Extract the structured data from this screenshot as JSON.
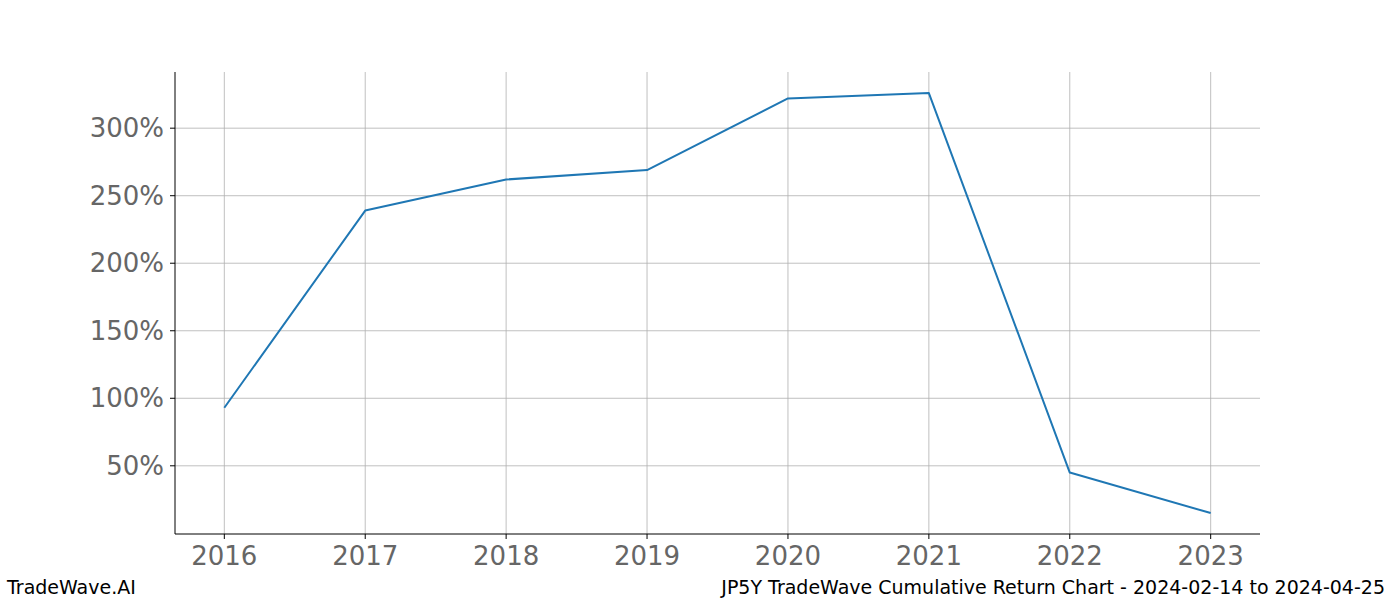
{
  "chart_data": {
    "type": "line",
    "title": "JP5Y TradeWave Cumulative Return Chart - 2024-02-14 to 2024-04-25",
    "source": "TradeWave.AI",
    "x": [
      2016,
      2017,
      2018,
      2019,
      2020,
      2021,
      2022,
      2023
    ],
    "values": [
      93,
      239,
      262,
      269,
      322,
      326,
      45,
      15
    ],
    "color": "#1f77b4",
    "xlim": [
      2015.65,
      2023.35
    ],
    "xticks": [
      2016,
      2017,
      2018,
      2019,
      2020,
      2021,
      2022,
      2023
    ],
    "ylim": [
      -0.5,
      341.6
    ],
    "yticks": [
      {
        "value": 50,
        "label": "50%"
      },
      {
        "value": 100,
        "label": "100%"
      },
      {
        "value": 150,
        "label": "150%"
      },
      {
        "value": 200,
        "label": "200%"
      },
      {
        "value": 250,
        "label": "250%"
      },
      {
        "value": 300,
        "label": "300%"
      }
    ],
    "grid": true
  }
}
